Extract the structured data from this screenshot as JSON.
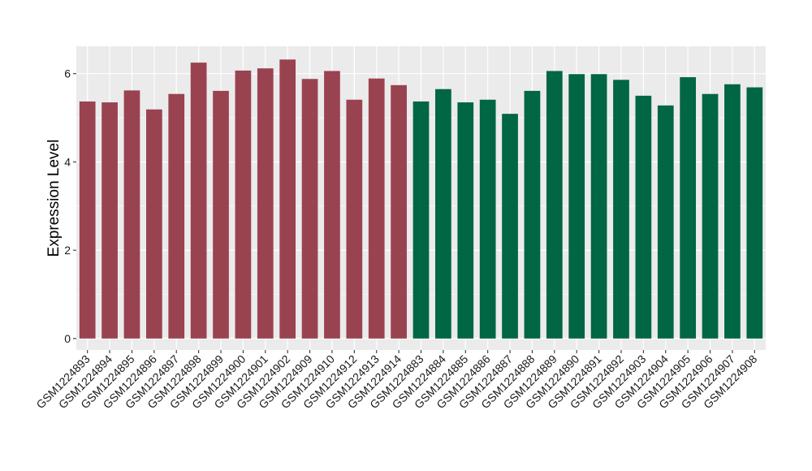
{
  "chart_data": {
    "type": "bar",
    "title": "",
    "xlabel": "",
    "ylabel": "Expression Level",
    "ylim": [
      -0.26,
      6.62
    ],
    "yticks": [
      0,
      2,
      4,
      6
    ],
    "grid": true,
    "legend": "none",
    "colors": {
      "group_a": "#9a4350",
      "group_b": "#006644",
      "panel_bg": "#ebebeb",
      "grid": "#ffffff"
    },
    "categories": [
      "GSM1224893",
      "GSM1224894",
      "GSM1224895",
      "GSM1224896",
      "GSM1224897",
      "GSM1224898",
      "GSM1224899",
      "GSM1224900",
      "GSM1224901",
      "GSM1224902",
      "GSM1224909",
      "GSM1224910",
      "GSM1224912",
      "GSM1224913",
      "GSM1224914",
      "GSM1224883",
      "GSM1224884",
      "GSM1224885",
      "GSM1224886",
      "GSM1224887",
      "GSM1224888",
      "GSM1224889",
      "GSM1224890",
      "GSM1224891",
      "GSM1224892",
      "GSM1224903",
      "GSM1224904",
      "GSM1224905",
      "GSM1224906",
      "GSM1224907",
      "GSM1224908"
    ],
    "values": [
      5.37,
      5.35,
      5.62,
      5.19,
      5.54,
      6.25,
      5.61,
      6.07,
      6.12,
      6.32,
      5.88,
      6.06,
      5.41,
      5.89,
      5.74,
      5.37,
      5.65,
      5.35,
      5.41,
      5.09,
      5.61,
      6.06,
      5.99,
      5.99,
      5.86,
      5.5,
      5.28,
      5.92,
      5.54,
      5.76,
      5.69
    ],
    "groups": [
      "a",
      "a",
      "a",
      "a",
      "a",
      "a",
      "a",
      "a",
      "a",
      "a",
      "a",
      "a",
      "a",
      "a",
      "a",
      "b",
      "b",
      "b",
      "b",
      "b",
      "b",
      "b",
      "b",
      "b",
      "b",
      "b",
      "b",
      "b",
      "b",
      "b",
      "b"
    ]
  }
}
